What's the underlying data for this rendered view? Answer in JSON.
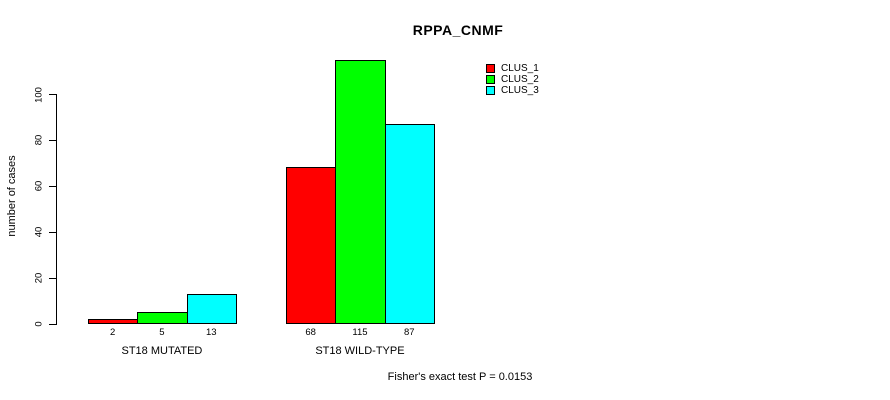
{
  "figure": {
    "background": "#ffffff",
    "text_color": "#000000"
  },
  "chart_data": {
    "type": "bar",
    "title": "RPPA_CNMF",
    "xlabel": "",
    "ylabel": "number of cases",
    "categories": [
      "ST18 MUTATED",
      "ST18 WILD-TYPE"
    ],
    "series": [
      {
        "name": "CLUS_1",
        "color": "#ff0000",
        "values": [
          2,
          68
        ]
      },
      {
        "name": "CLUS_2",
        "color": "#00ff00",
        "values": [
          5,
          115
        ]
      },
      {
        "name": "CLUS_3",
        "color": "#00ffff",
        "values": [
          13,
          87
        ]
      }
    ],
    "bar_value_labels_shown": true,
    "yticks": [
      0,
      20,
      40,
      60,
      80,
      100
    ],
    "ylim": [
      0,
      100
    ],
    "grid": false,
    "legend_position": "top-right",
    "legend_entries": [
      "CLUS_1",
      "CLUS_2",
      "CLUS_3"
    ],
    "annotation": "Fisher's exact test P = 0.0153",
    "bar_border_color": "#000000"
  }
}
